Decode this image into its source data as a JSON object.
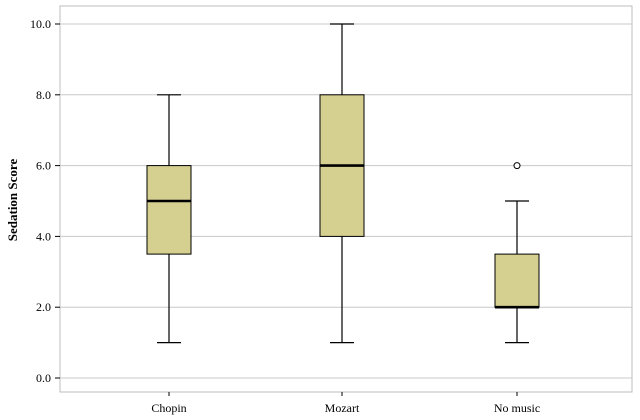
{
  "chart_data": {
    "type": "boxplot",
    "title": "",
    "xlabel": "",
    "ylabel": "Sedation Score",
    "ylim": [
      0,
      10
    ],
    "yticks": [
      0,
      2,
      4,
      6,
      8,
      10
    ],
    "ytick_labels": [
      "0.0",
      "2.0",
      "4.0",
      "6.0",
      "8.0",
      "10.0"
    ],
    "grid": "horizontal",
    "categories": [
      "Chopin",
      "Mozart",
      "No music"
    ],
    "boxes": [
      {
        "category": "Chopin",
        "whisker_low": 1,
        "q1": 3.5,
        "median": 5,
        "q3": 6,
        "whisker_high": 8,
        "outliers": []
      },
      {
        "category": "Mozart",
        "whisker_low": 1,
        "q1": 4,
        "median": 6,
        "q3": 8,
        "whisker_high": 10,
        "outliers": []
      },
      {
        "category": "No music",
        "whisker_low": 1,
        "q1": 2,
        "median": 2,
        "q3": 3.5,
        "whisker_high": 5,
        "outliers": [
          6
        ]
      }
    ],
    "colors": {
      "box_fill": "#d5cf90",
      "box_stroke": "#000000",
      "grid": "#c8c8c8",
      "frame": "#bdbdbd"
    }
  }
}
